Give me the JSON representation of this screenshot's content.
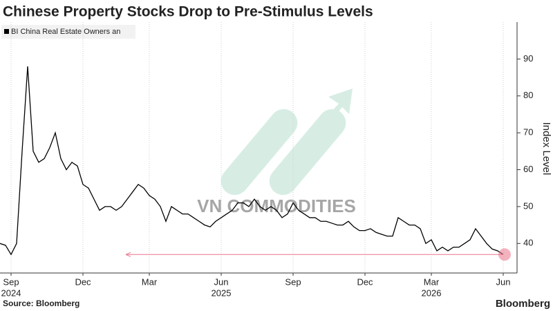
{
  "chart_data": {
    "type": "line",
    "title": "Chinese Property Stocks Drop to Pre-Stimulus Levels",
    "y_label": "Index Level",
    "source": "Source: Bloomberg",
    "brand": "Bloomberg",
    "watermark": "VN COMMODITIES",
    "categories": [
      null,
      null,
      "Sep",
      null,
      null,
      null,
      null,
      null,
      null,
      null,
      null,
      null,
      null,
      null,
      null,
      "Dec",
      null,
      null,
      null,
      null,
      null,
      null,
      null,
      null,
      null,
      null,
      null,
      "Mar",
      null,
      null,
      null,
      null,
      null,
      null,
      null,
      null,
      null,
      null,
      null,
      null,
      "Jun",
      null,
      null,
      null,
      null,
      null,
      null,
      null,
      null,
      null,
      null,
      null,
      null,
      "Sep",
      null,
      null,
      null,
      null,
      null,
      null,
      null,
      null,
      null,
      null,
      null,
      null,
      "Dec",
      null,
      null,
      null,
      null,
      null,
      null,
      null,
      null,
      null,
      null,
      null,
      "Mar",
      null,
      null,
      null,
      null,
      null,
      null,
      null,
      null,
      null,
      null,
      null,
      null,
      "Jun"
    ],
    "category_years": [
      null,
      null,
      "2024",
      null,
      null,
      null,
      null,
      null,
      null,
      null,
      null,
      null,
      null,
      null,
      null,
      null,
      null,
      null,
      null,
      null,
      null,
      null,
      null,
      null,
      null,
      null,
      null,
      null,
      null,
      null,
      null,
      null,
      null,
      null,
      null,
      null,
      null,
      null,
      null,
      null,
      "2025",
      null,
      null,
      null,
      null,
      null,
      null,
      null,
      null,
      null,
      null,
      null,
      null,
      null,
      null,
      null,
      null,
      null,
      null,
      null,
      null,
      null,
      null,
      null,
      null,
      null,
      null,
      null,
      null,
      null,
      null,
      null,
      null,
      null,
      null,
      null,
      null,
      null,
      "2026",
      null,
      null,
      null,
      null,
      null,
      null,
      null,
      null,
      null,
      null,
      null,
      null,
      null
    ],
    "series": [
      {
        "name": "BI China Real Estate Owners an",
        "color": "#000000",
        "values": [
          40,
          39.5,
          37,
          40,
          65,
          88,
          65,
          62,
          63,
          66,
          70,
          63,
          60,
          62,
          61,
          56,
          55,
          52,
          49,
          50,
          50,
          49,
          50,
          52,
          54,
          56,
          55,
          53,
          52,
          50,
          46,
          50,
          49,
          48,
          48,
          47,
          46,
          45,
          44.5,
          46,
          47,
          48,
          49,
          51,
          51,
          50,
          52,
          50,
          49,
          50,
          49,
          47,
          48,
          51,
          49,
          48,
          47,
          47,
          46,
          46,
          45.5,
          45,
          45,
          46,
          44.5,
          43.5,
          43.5,
          44,
          43,
          42.5,
          42,
          42,
          47,
          46,
          45,
          45,
          44,
          40,
          41,
          38,
          39,
          38,
          39,
          39,
          40,
          41,
          44,
          42,
          40,
          38.5,
          38,
          37
        ]
      }
    ],
    "reference_line": 37,
    "reference_color": "#e8748a",
    "ylim": [
      32,
      100
    ],
    "yticks": [
      40,
      50,
      60,
      70,
      80,
      90
    ],
    "grid": "x"
  }
}
